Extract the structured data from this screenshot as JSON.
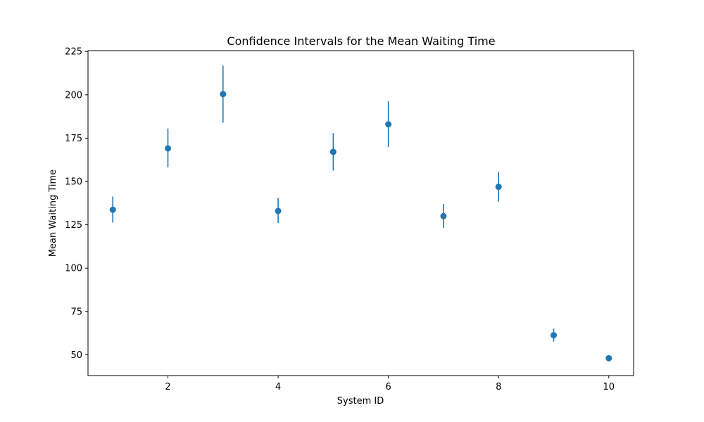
{
  "chart_data": {
    "type": "scatter",
    "title": "Confidence Intervals for the Mean Waiting Time",
    "xlabel": "System ID",
    "ylabel": "Mean Waiting Time",
    "xlim": [
      0.55,
      10.45
    ],
    "ylim": [
      38,
      225.5
    ],
    "xticks": [
      2,
      4,
      6,
      8,
      10
    ],
    "yticks": [
      50,
      75,
      100,
      125,
      150,
      175,
      200,
      225
    ],
    "grid": false,
    "color": "#1f77b4",
    "points": [
      {
        "x": 1,
        "y": 133.7,
        "lower": 126.3,
        "upper": 141.3
      },
      {
        "x": 2,
        "y": 169.1,
        "lower": 158.1,
        "upper": 180.6
      },
      {
        "x": 3,
        "y": 200.4,
        "lower": 183.9,
        "upper": 216.9
      },
      {
        "x": 4,
        "y": 133.0,
        "lower": 126.0,
        "upper": 140.5
      },
      {
        "x": 5,
        "y": 167.1,
        "lower": 156.3,
        "upper": 177.9
      },
      {
        "x": 6,
        "y": 183.0,
        "lower": 169.9,
        "upper": 196.3
      },
      {
        "x": 7,
        "y": 130.0,
        "lower": 123.3,
        "upper": 137.0
      },
      {
        "x": 8,
        "y": 146.9,
        "lower": 138.3,
        "upper": 155.6
      },
      {
        "x": 9,
        "y": 61.3,
        "lower": 57.6,
        "upper": 65.1
      },
      {
        "x": 10,
        "y": 48.0,
        "lower": 46.8,
        "upper": 49.2
      }
    ]
  }
}
